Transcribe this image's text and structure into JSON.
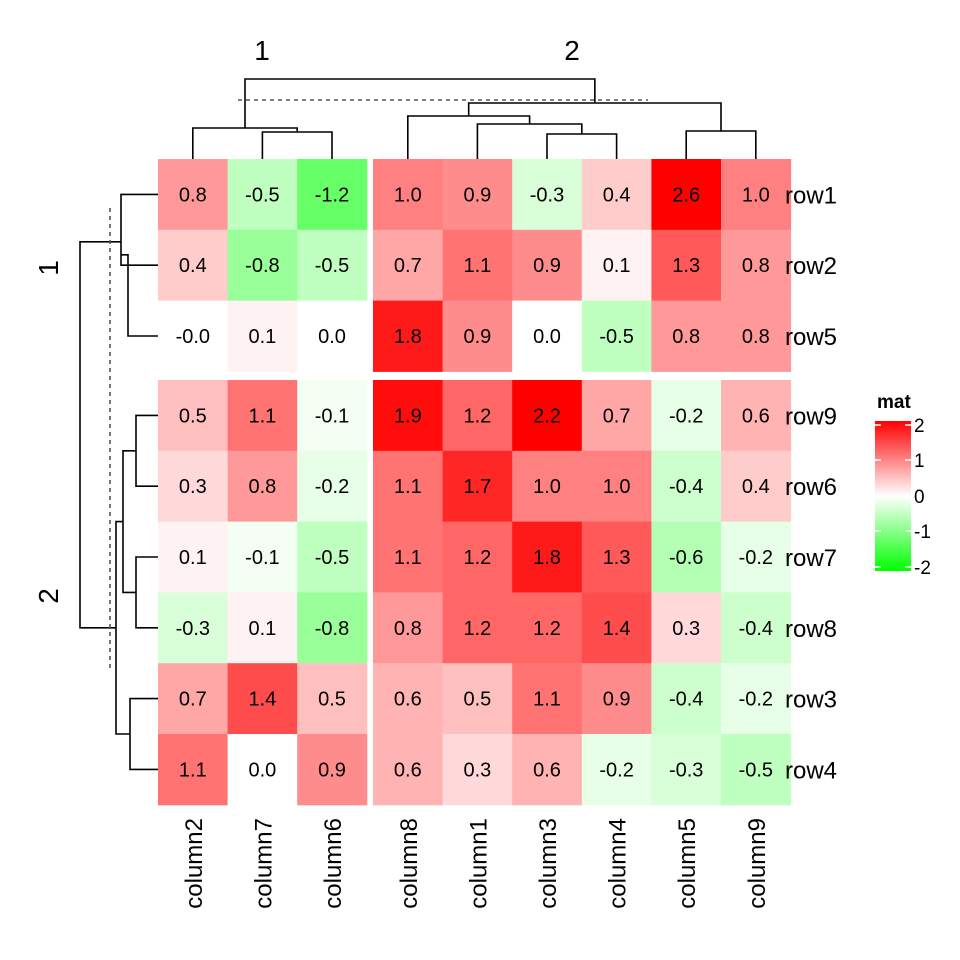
{
  "chart_data": {
    "type": "heatmap",
    "rows": [
      "row1",
      "row2",
      "row5",
      "row9",
      "row6",
      "row7",
      "row8",
      "row3",
      "row4"
    ],
    "columns": [
      "column2",
      "column7",
      "column6",
      "column8",
      "column1",
      "column3",
      "column4",
      "column5",
      "column9"
    ],
    "values": [
      [
        0.8,
        -0.5,
        -1.2,
        1.0,
        0.9,
        -0.3,
        0.4,
        2.6,
        1.0
      ],
      [
        0.4,
        -0.8,
        -0.5,
        0.7,
        1.1,
        0.9,
        0.1,
        1.3,
        0.8
      ],
      [
        -0.0,
        0.1,
        0.0,
        1.8,
        0.9,
        0.0,
        -0.5,
        0.8,
        0.8
      ],
      [
        0.5,
        1.1,
        -0.1,
        1.9,
        1.2,
        2.2,
        0.7,
        -0.2,
        0.6
      ],
      [
        0.3,
        0.8,
        -0.2,
        1.1,
        1.7,
        1.0,
        1.0,
        -0.4,
        0.4
      ],
      [
        0.1,
        -0.1,
        -0.5,
        1.1,
        1.2,
        1.8,
        1.3,
        -0.6,
        -0.2
      ],
      [
        -0.3,
        0.1,
        -0.8,
        0.8,
        1.2,
        1.2,
        1.4,
        0.3,
        -0.4
      ],
      [
        0.7,
        1.4,
        0.5,
        0.6,
        0.5,
        1.1,
        0.9,
        -0.4,
        -0.2
      ],
      [
        1.1,
        0.0,
        0.9,
        0.6,
        0.3,
        0.6,
        -0.2,
        -0.3,
        -0.5
      ]
    ],
    "value_labels": [
      [
        "0.8",
        "-0.5",
        "-1.2",
        "1.0",
        "0.9",
        "-0.3",
        "0.4",
        "2.6",
        "1.0"
      ],
      [
        "0.4",
        "-0.8",
        "-0.5",
        "0.7",
        "1.1",
        "0.9",
        "0.1",
        "1.3",
        "0.8"
      ],
      [
        "-0.0",
        "0.1",
        "0.0",
        "1.8",
        "0.9",
        "0.0",
        "-0.5",
        "0.8",
        "0.8"
      ],
      [
        "0.5",
        "1.1",
        "-0.1",
        "1.9",
        "1.2",
        "2.2",
        "0.7",
        "-0.2",
        "0.6"
      ],
      [
        "0.3",
        "0.8",
        "-0.2",
        "1.1",
        "1.7",
        "1.0",
        "1.0",
        "-0.4",
        "0.4"
      ],
      [
        "0.1",
        "-0.1",
        "-0.5",
        "1.1",
        "1.2",
        "1.8",
        "1.3",
        "-0.6",
        "-0.2"
      ],
      [
        "-0.3",
        "0.1",
        "-0.8",
        "0.8",
        "1.2",
        "1.2",
        "1.4",
        "0.3",
        "-0.4"
      ],
      [
        "0.7",
        "1.4",
        "0.5",
        "0.6",
        "0.5",
        "1.1",
        "0.9",
        "-0.4",
        "-0.2"
      ],
      [
        "1.1",
        "0.0",
        "0.9",
        "0.6",
        "0.3",
        "0.6",
        "-0.2",
        "-0.3",
        "-0.5"
      ]
    ],
    "row_splits": [
      {
        "label": "1",
        "count": 3
      },
      {
        "label": "2",
        "count": 6
      }
    ],
    "column_splits": [
      {
        "label": "1",
        "count": 3
      },
      {
        "label": "2",
        "count": 6
      }
    ],
    "color_scale": {
      "breaks": [
        -2,
        0,
        2
      ],
      "colors": [
        "#00ff00",
        "#ffffff",
        "#ff0000"
      ]
    },
    "legend": {
      "title": "mat",
      "ticks": [
        "2",
        "1",
        "0",
        "-1",
        "-2"
      ],
      "placement": "right"
    }
  }
}
